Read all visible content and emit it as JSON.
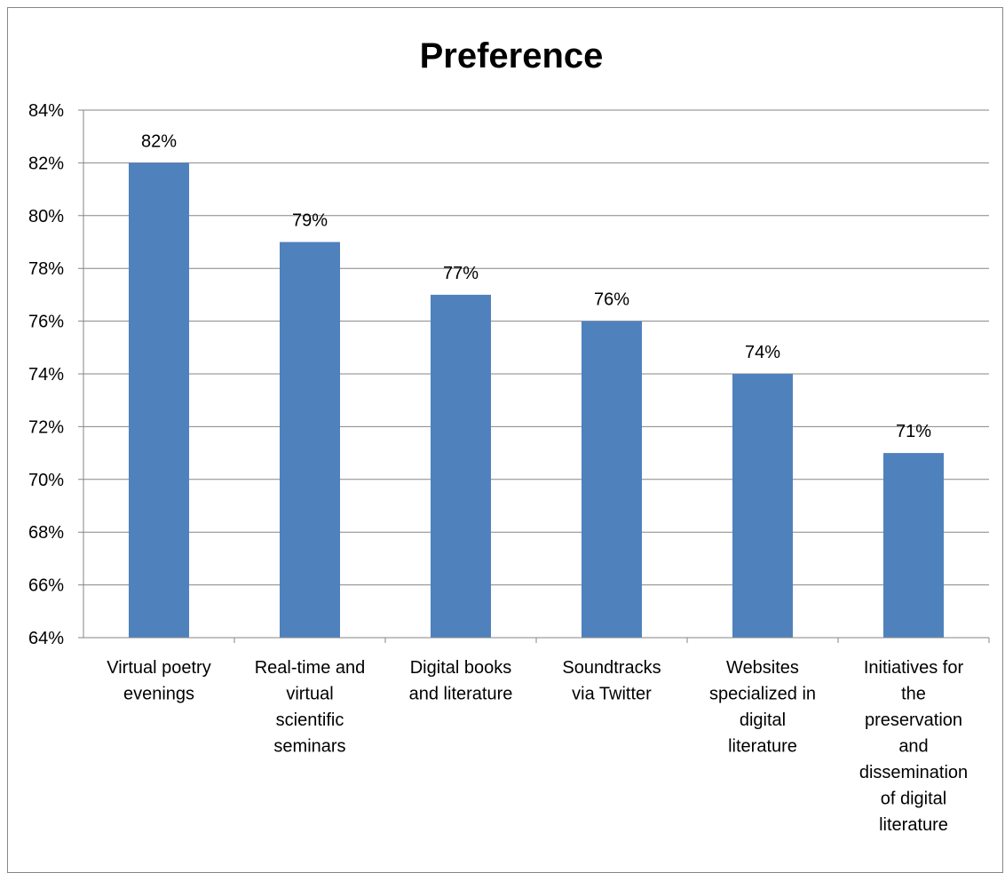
{
  "chart_data": {
    "type": "bar",
    "title": "Preference",
    "categories": [
      "Virtual poetry evenings",
      "Real-time and virtual scientific seminars",
      "Digital books and literature",
      "Soundtracks via Twitter",
      "Websites specialized in digital literature",
      "Initiatives for the preservation and dissemination of digital literature"
    ],
    "category_label_lines": [
      [
        "Virtual poetry",
        "evenings"
      ],
      [
        "Real-time and",
        "virtual",
        "scientific",
        "seminars"
      ],
      [
        "Digital books",
        "and literature"
      ],
      [
        "Soundtracks",
        "via Twitter"
      ],
      [
        "Websites",
        "specialized in",
        "digital",
        "literature"
      ],
      [
        "Initiatives for",
        "the",
        "preservation",
        "and",
        "dissemination",
        "of digital",
        "literature"
      ]
    ],
    "values": [
      82,
      79,
      77,
      76,
      74,
      71
    ],
    "data_labels": [
      "82%",
      "79%",
      "77%",
      "76%",
      "74%",
      "71%"
    ],
    "y_tick_labels": [
      "64%",
      "66%",
      "68%",
      "70%",
      "72%",
      "74%",
      "76%",
      "78%",
      "80%",
      "82%",
      "84%"
    ],
    "y_tick_values": [
      64,
      66,
      68,
      70,
      72,
      74,
      76,
      78,
      80,
      82,
      84
    ],
    "ylim": [
      64,
      84
    ],
    "grid": true,
    "legend": "none",
    "bar_color": "#4f81bd",
    "grid_color": "#868686"
  }
}
